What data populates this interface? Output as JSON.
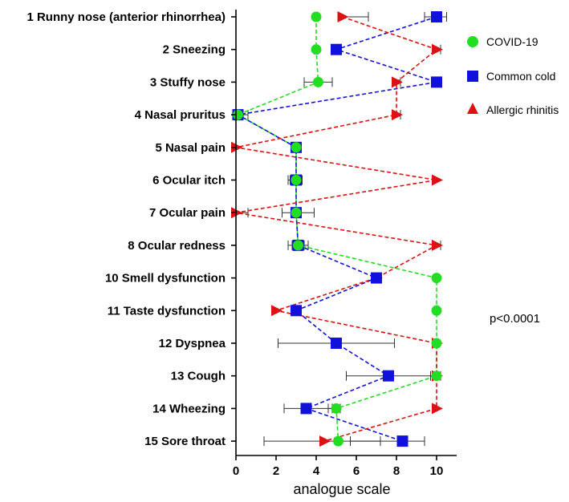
{
  "chart_data": {
    "type": "line",
    "title": "",
    "xlabel": "analogue scale",
    "ylabel": "",
    "xlim": [
      0,
      11
    ],
    "x_ticks": [
      0,
      2,
      4,
      6,
      8,
      10
    ],
    "categories": [
      "1 Runny nose (anterior rhinorrhea)",
      "2 Sneezing",
      "3 Stuffy nose",
      "4 Nasal pruritus",
      "5 Nasal pain",
      "6 Ocular itch",
      "7 Ocular pain",
      "8 Ocular redness",
      "10 Smell dysfunction",
      "11 Taste dysfunction",
      "12 Dyspnea",
      "13 Cough",
      "14 Wheezing",
      "15 Sore throat"
    ],
    "series": [
      {
        "name": "COVID-19",
        "color": "#22dd22",
        "marker": "circle",
        "values": [
          4.0,
          4.0,
          4.1,
          0.1,
          3.0,
          3.0,
          3.0,
          3.1,
          10.0,
          10.0,
          10.0,
          10.0,
          5.0,
          5.1
        ],
        "error_low": [
          3.9,
          3.9,
          3.4,
          0.0,
          2.9,
          2.6,
          2.3,
          2.6,
          null,
          null,
          null,
          9.7,
          4.6,
          1.4
        ],
        "error_high": [
          4.1,
          4.1,
          4.8,
          0.3,
          3.1,
          3.3,
          3.9,
          3.6,
          null,
          null,
          null,
          10.2,
          5.2,
          7.2
        ]
      },
      {
        "name": "Common cold",
        "color": "#1111dd",
        "marker": "square",
        "values": [
          10.0,
          5.0,
          10.0,
          0.1,
          3.0,
          3.0,
          3.0,
          3.1,
          7.0,
          3.0,
          5.0,
          7.6,
          3.5,
          8.3
        ],
        "error_low": [
          9.4,
          5.0,
          null,
          0.0,
          2.9,
          2.7,
          2.8,
          2.8,
          6.8,
          null,
          2.1,
          5.5,
          2.4,
          5.7
        ],
        "error_high": [
          10.5,
          5.0,
          null,
          0.6,
          3.1,
          3.3,
          3.2,
          3.4,
          7.2,
          null,
          7.9,
          9.8,
          4.8,
          9.4
        ]
      },
      {
        "name": "Allergic rhinitis",
        "color": "#dd1111",
        "marker": "triangle",
        "values": [
          5.3,
          10.0,
          8.0,
          8.0,
          0.0,
          10.0,
          0.0,
          10.0,
          7.0,
          2.0,
          10.0,
          10.0,
          10.0,
          4.4
        ],
        "error_low": [
          null,
          9.8,
          7.8,
          7.8,
          null,
          null,
          null,
          9.8,
          6.8,
          null,
          null,
          null,
          null,
          null
        ],
        "error_high": [
          6.6,
          10.2,
          8.2,
          8.2,
          null,
          null,
          0.6,
          10.2,
          7.2,
          null,
          null,
          null,
          null,
          null
        ]
      }
    ],
    "legend_position": "right",
    "annotation": "p<0.0001",
    "grid": false
  }
}
